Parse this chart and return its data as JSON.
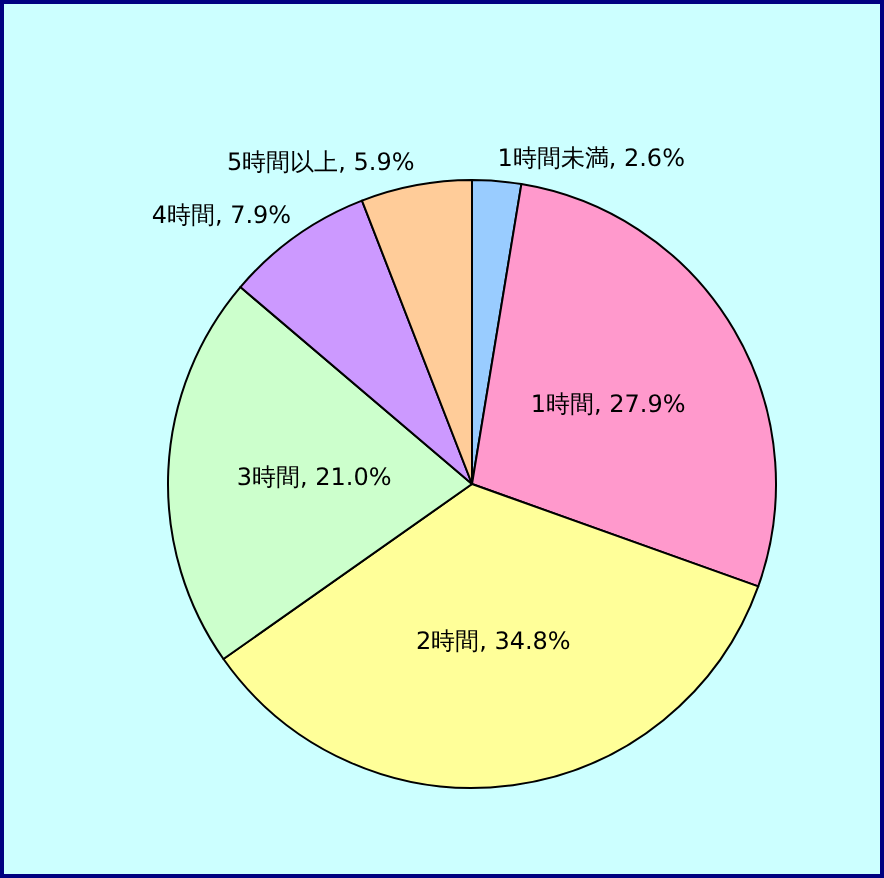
{
  "chart_data": {
    "type": "pie",
    "categories": [
      "1時間未満",
      "1時間",
      "2時間",
      "3時間",
      "4時間",
      "5時間以上"
    ],
    "values": [
      2.6,
      27.9,
      34.8,
      21.0,
      7.9,
      5.9
    ],
    "value_labels": [
      "2.6%",
      "27.9%",
      "34.8%",
      "21.0%",
      "7.9%",
      "5.9%"
    ],
    "colors": [
      "#99ccff",
      "#ff99cc",
      "#ffff99",
      "#ccffcc",
      "#cc99ff",
      "#ffcc99"
    ],
    "legend": false
  }
}
